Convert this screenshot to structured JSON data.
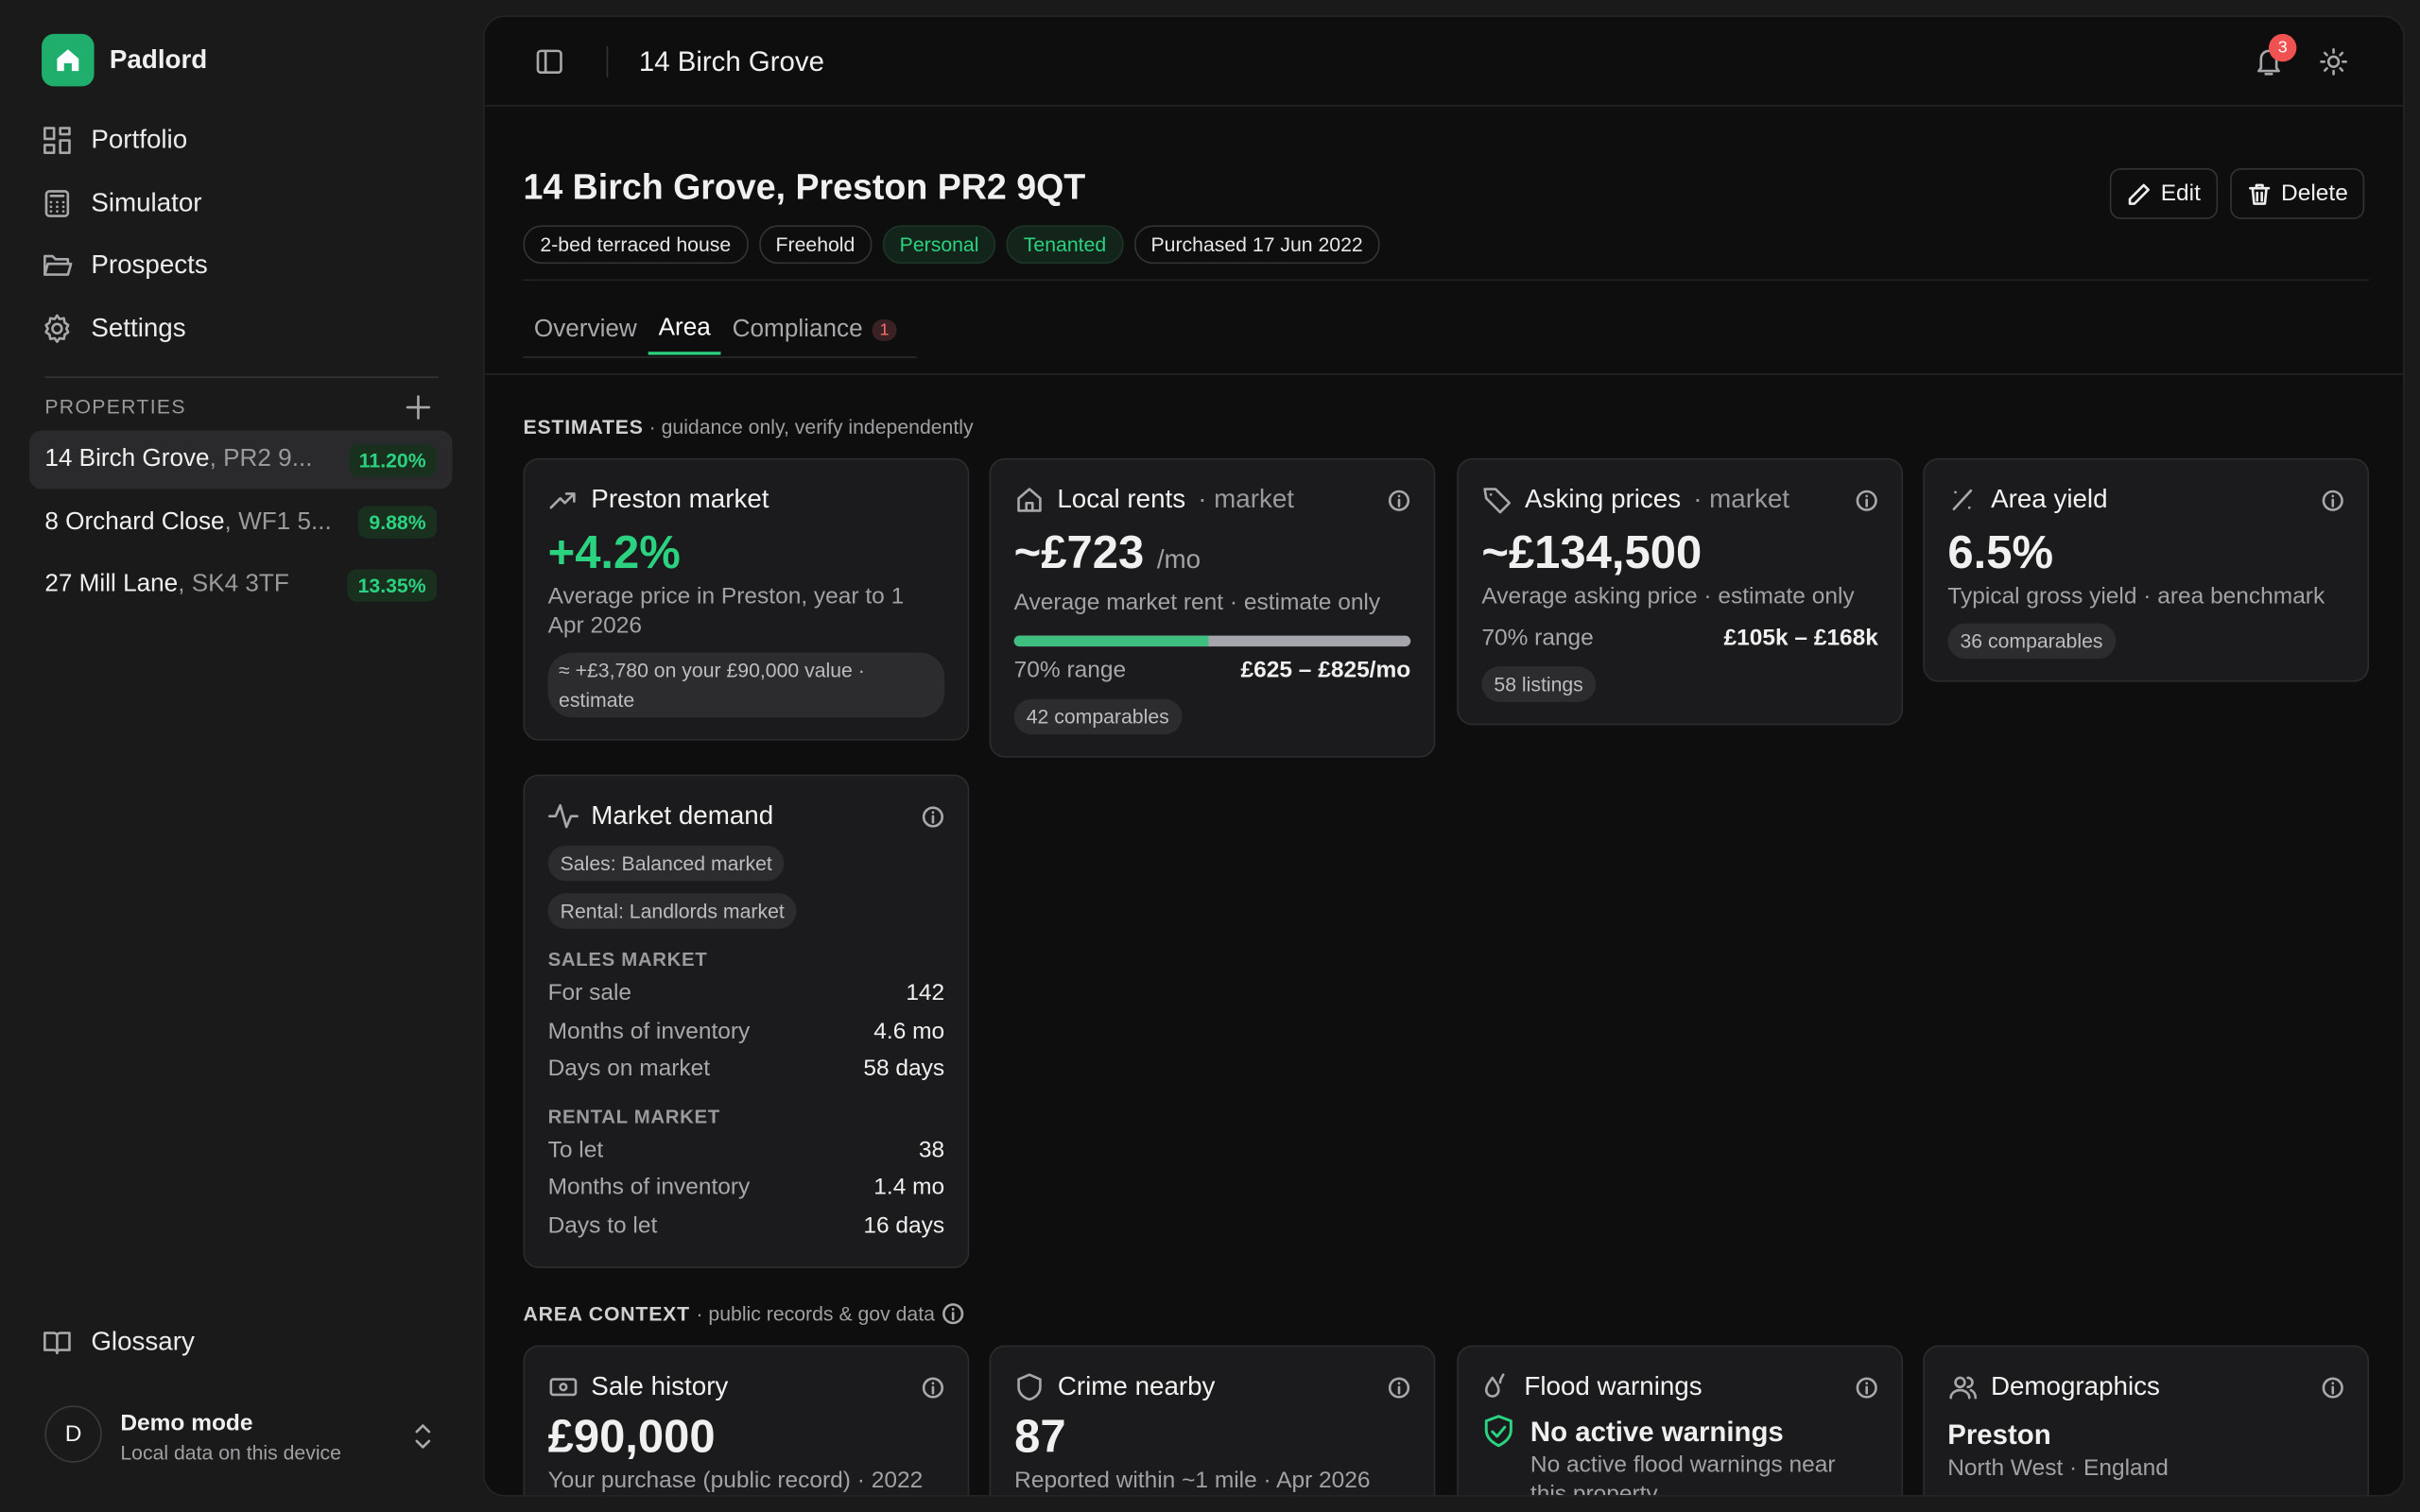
{
  "sidebar": {
    "brand": "Padlord",
    "nav": [
      "Portfolio",
      "Simulator",
      "Prospects",
      "Settings"
    ],
    "properties_heading": "PROPERTIES",
    "properties": [
      {
        "name": "14 Birch Grove",
        "postcode": ", PR2 9...",
        "yield": "11.20%"
      },
      {
        "name": "8 Orchard Close",
        "postcode": ", WF1 5...",
        "yield": "9.88%"
      },
      {
        "name": "27 Mill Lane",
        "postcode": ", SK4 3TF",
        "yield": "13.35%"
      }
    ],
    "glossary": "Glossary",
    "user": {
      "avatar": "D",
      "name": "Demo mode",
      "subtitle": "Local data on this device"
    }
  },
  "topbar": {
    "title": "14 Birch Grove",
    "notification_count": "3"
  },
  "header": {
    "title": "14 Birch Grove, Preston PR2 9QT",
    "tags": [
      "2-bed terraced house",
      "Freehold",
      "Personal",
      "Tenanted",
      "Purchased 17 Jun 2022"
    ],
    "actions": [
      "Edit",
      "Delete"
    ]
  },
  "tabs": [
    {
      "label": "Overview"
    },
    {
      "label": "Area"
    },
    {
      "label": "Compliance",
      "badge": "1"
    }
  ],
  "estimates": {
    "heading": "ESTIMATES",
    "note": "· guidance only, verify independently",
    "preston_market": {
      "title": "Preston market",
      "value": "+4.2%",
      "description": "Average price in Preston, year to 1 Apr 2026",
      "note": "≈ +£3,780 on your £90,000 value · estimate"
    },
    "local_rents": {
      "title": "Local rents",
      "qualifier": "· market",
      "value": "~£723",
      "unit": "/mo",
      "description": "Average market rent · estimate only",
      "range_label": "70% range",
      "range": "£625 – £825/mo",
      "comparables": "42 comparables"
    },
    "asking_prices": {
      "title": "Asking prices",
      "qualifier": "· market",
      "value": "~£134,500",
      "description": "Average asking price · estimate only",
      "range_label": "70% range",
      "range": "£105k – £168k",
      "listings": "58 listings"
    },
    "area_yield": {
      "title": "Area yield",
      "value": "6.5%",
      "description": "Typical gross yield · area benchmark",
      "comparables": "36 comparables"
    },
    "market_demand": {
      "title": "Market demand",
      "chips": [
        "Sales: Balanced market",
        "Rental: Landlords market"
      ],
      "sections": [
        {
          "heading": "SALES MARKET",
          "rows": [
            [
              "For sale",
              "142"
            ],
            [
              "Months of inventory",
              "4.6 mo"
            ],
            [
              "Days on market",
              "58 days"
            ]
          ]
        },
        {
          "heading": "RENTAL MARKET",
          "rows": [
            [
              "To let",
              "38"
            ],
            [
              "Months of inventory",
              "1.4 mo"
            ],
            [
              "Days to let",
              "16 days"
            ]
          ]
        }
      ]
    }
  },
  "area_context": {
    "heading": "AREA CONTEXT",
    "note": "· public records & gov data",
    "cards": [
      {
        "title": "Sale history",
        "value": "£90,000",
        "description": "Your purchase (public record) · 2022"
      },
      {
        "title": "Crime nearby",
        "value": "87",
        "description": "Reported within ~1 mile · Apr 2026"
      },
      {
        "title": "Flood warnings",
        "value": "No active warnings",
        "description": "No active flood warnings near this property"
      },
      {
        "title": "Demographics",
        "value": "Preston",
        "description": "North West · England"
      }
    ]
  }
}
